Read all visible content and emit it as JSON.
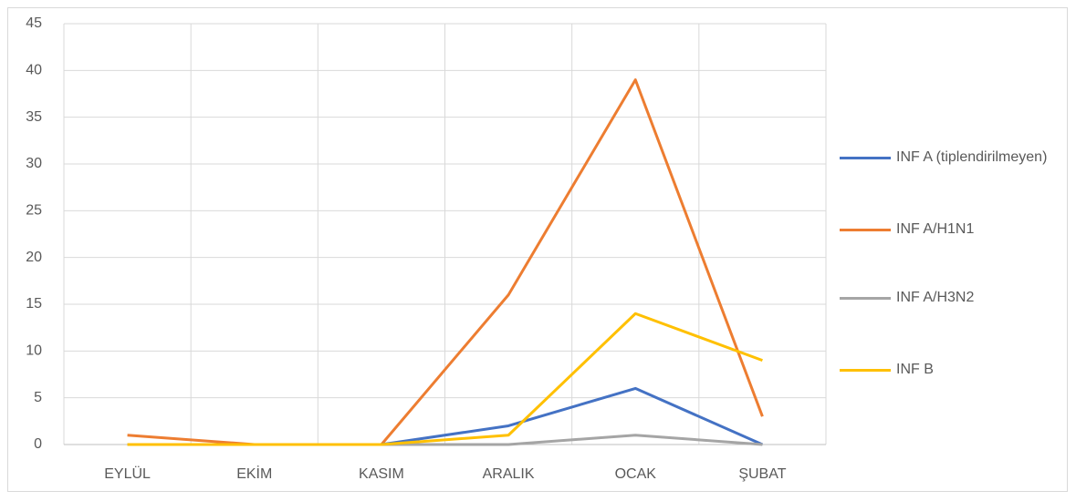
{
  "chart_data": {
    "type": "line",
    "categories": [
      "EYLÜL",
      "EKİM",
      "KASIM",
      "ARALIK",
      "OCAK",
      "ŞUBAT"
    ],
    "series": [
      {
        "name": "INF A (tiplendirilmeyen)",
        "color": "#4472c4",
        "values": [
          0,
          0,
          0,
          2,
          6,
          0
        ]
      },
      {
        "name": "INF A/H1N1",
        "color": "#ed7d31",
        "values": [
          1,
          0,
          0,
          16,
          39,
          3
        ]
      },
      {
        "name": "INF A/H3N2",
        "color": "#a5a5a5",
        "values": [
          0,
          0,
          0,
          0,
          1,
          0
        ]
      },
      {
        "name": "INF B",
        "color": "#ffc000",
        "values": [
          0,
          0,
          0,
          1,
          14,
          9
        ]
      }
    ],
    "ylim": [
      0,
      45
    ],
    "yticks": [
      0,
      5,
      10,
      15,
      20,
      25,
      30,
      35,
      40,
      45
    ],
    "grid": true,
    "legend": "right"
  }
}
